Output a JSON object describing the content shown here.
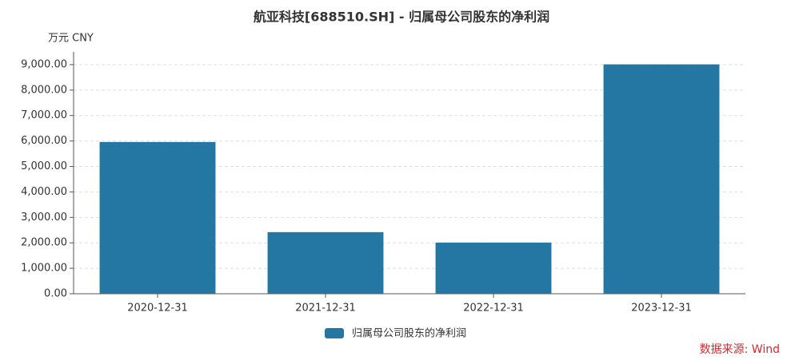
{
  "chart_data": {
    "type": "bar",
    "title": "航亚科技[688510.SH] - 归属母公司股东的净利润",
    "y_unit": "万元  CNY",
    "categories": [
      "2020-12-31",
      "2021-12-31",
      "2022-12-31",
      "2023-12-31"
    ],
    "series": [
      {
        "name": "归属母公司股东的净利润",
        "color": "#2577a3",
        "values": [
          5960,
          2420,
          2010,
          9010
        ]
      }
    ],
    "ylim": [
      0,
      9500
    ],
    "yticks": [
      {
        "value": 0,
        "label": "0.00"
      },
      {
        "value": 1000,
        "label": "1,000.00"
      },
      {
        "value": 2000,
        "label": "2,000.00"
      },
      {
        "value": 3000,
        "label": "3,000.00"
      },
      {
        "value": 4000,
        "label": "4,000.00"
      },
      {
        "value": 5000,
        "label": "5,000.00"
      },
      {
        "value": 6000,
        "label": "6,000.00"
      },
      {
        "value": 7000,
        "label": "7,000.00"
      },
      {
        "value": 8000,
        "label": "8,000.00"
      },
      {
        "value": 9000,
        "label": "9,000.00"
      }
    ],
    "grid": true,
    "legend": "bottom",
    "source": "数据来源: Wind"
  }
}
